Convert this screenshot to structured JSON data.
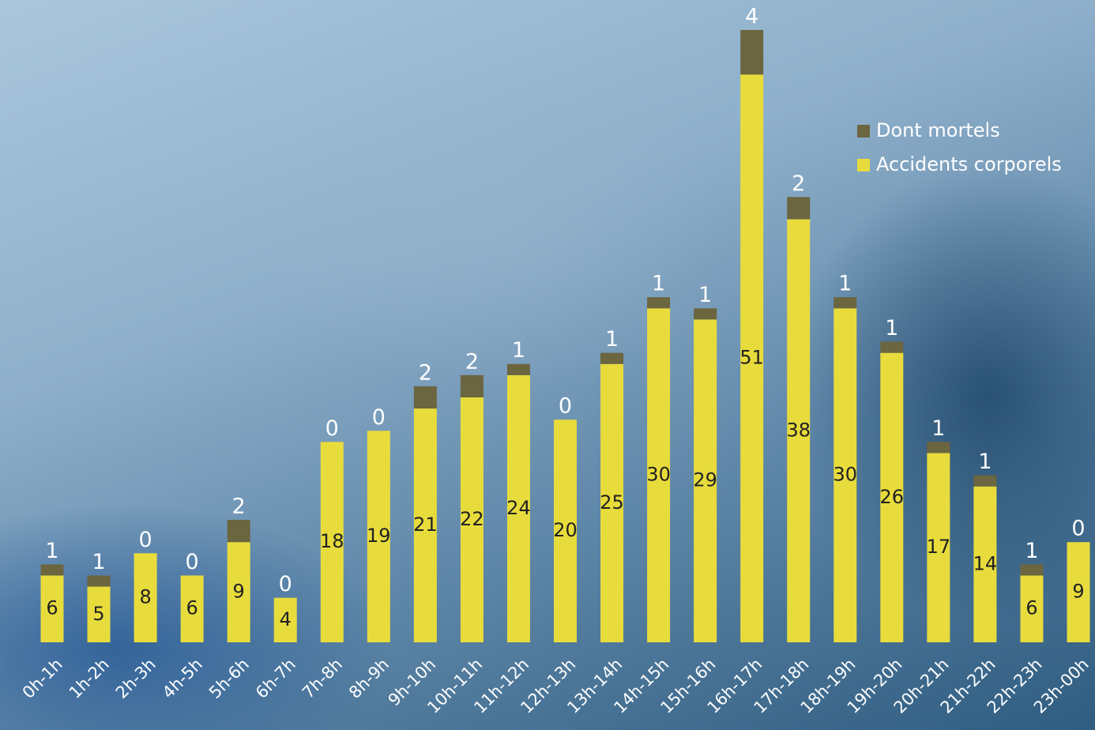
{
  "chart_data": {
    "type": "stacked-bar",
    "categories": [
      "0h-1h",
      "1h-2h",
      "2h-3h",
      "4h-5h",
      "5h-6h",
      "6h-7h",
      "7h-8h",
      "8h-9h",
      "9h-10h",
      "10h-11h",
      "11h-12h",
      "12h-13h",
      "13h-14h",
      "14h-15h",
      "15h-16h",
      "16h-17h",
      "17h-18h",
      "18h-19h",
      "19h-20h",
      "20h-21h",
      "21h-22h",
      "22h-23h",
      "23h-00h"
    ],
    "series": [
      {
        "name": "Dont mortels",
        "color": "#6b6540",
        "values": [
          1,
          1,
          0,
          0,
          2,
          0,
          0,
          0,
          2,
          2,
          1,
          0,
          1,
          1,
          1,
          4,
          2,
          1,
          1,
          1,
          1,
          1,
          0
        ]
      },
      {
        "name": "Accidents corporels",
        "color": "#e8dc3c",
        "values": [
          6,
          5,
          8,
          6,
          9,
          4,
          18,
          19,
          21,
          22,
          24,
          20,
          25,
          30,
          29,
          51,
          38,
          30,
          26,
          17,
          14,
          6,
          9
        ]
      }
    ],
    "legend": "top-right"
  }
}
